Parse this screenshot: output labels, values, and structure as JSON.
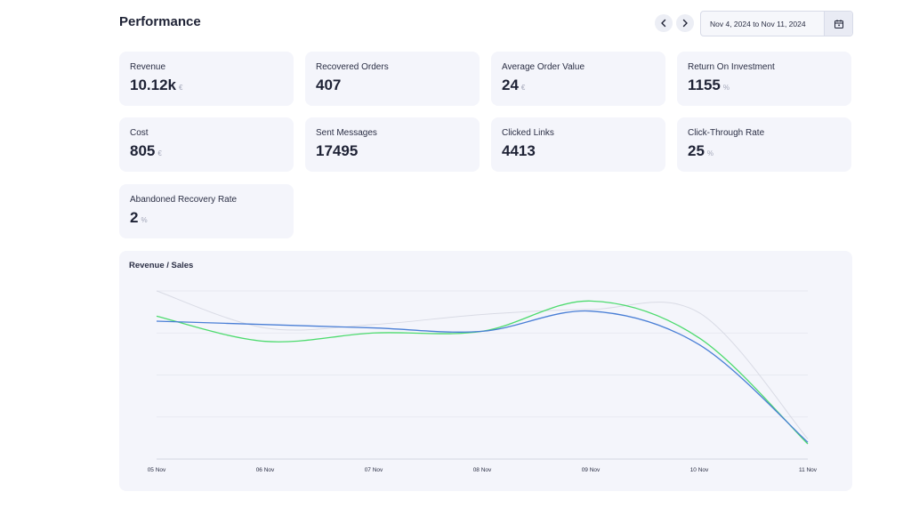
{
  "header": {
    "title": "Performance",
    "date_range": "Nov 4, 2024 to Nov 11, 2024"
  },
  "icons": {
    "prev": "chevron-left-icon",
    "next": "chevron-right-icon",
    "calendar": "calendar-icon"
  },
  "kpis": [
    {
      "label": "Revenue",
      "value": "10.12k",
      "unit": "€"
    },
    {
      "label": "Recovered Orders",
      "value": "407",
      "unit": ""
    },
    {
      "label": "Average Order Value",
      "value": "24",
      "unit": "€"
    },
    {
      "label": "Return On Investment",
      "value": "1155",
      "unit": "%"
    },
    {
      "label": "Cost",
      "value": "805",
      "unit": "€"
    },
    {
      "label": "Sent Messages",
      "value": "17495",
      "unit": ""
    },
    {
      "label": "Clicked Links",
      "value": "4413",
      "unit": ""
    },
    {
      "label": "Click-Through Rate",
      "value": "25",
      "unit": "%"
    },
    {
      "label": "Abandoned Recovery Rate",
      "value": "2",
      "unit": "%"
    }
  ],
  "colors": {
    "accent_blue": "#4a7fd6",
    "accent_green": "#4ddb6e",
    "light_gray_line": "#d9dbe5",
    "card_bg": "#f4f5fb"
  },
  "chart_data": {
    "type": "line",
    "title": "Revenue / Sales",
    "x": [
      "05 Nov",
      "06 Nov",
      "07 Nov",
      "08 Nov",
      "09 Nov",
      "10 Nov",
      "11 Nov"
    ],
    "ylim": [
      0,
      100
    ],
    "grid": true,
    "series": [
      {
        "color": "#4a7fd6",
        "values": [
          82,
          80,
          78,
          76,
          88,
          68,
          10
        ]
      },
      {
        "color": "#4ddb6e",
        "values": [
          85,
          70,
          75,
          76,
          94,
          72,
          9
        ]
      },
      {
        "color": "#d9dbe5",
        "values": [
          100,
          78,
          80,
          86,
          89,
          87,
          12
        ]
      }
    ]
  }
}
